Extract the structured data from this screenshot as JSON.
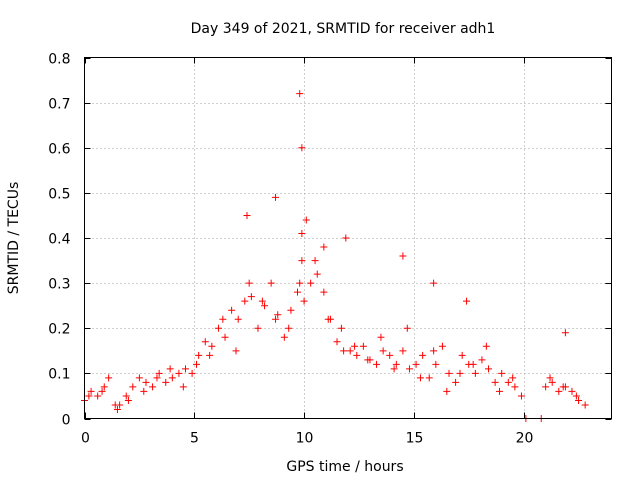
{
  "chart_data": {
    "type": "scatter",
    "title": "Day 349 of 2021, SRMTID for receiver adh1",
    "xlabel": "GPS time / hours",
    "ylabel": "SRMTID / TECUs",
    "xlim": [
      0,
      24
    ],
    "ylim": [
      0,
      0.8
    ],
    "xticks": [
      0,
      5,
      10,
      15,
      20
    ],
    "xtick_labels": [
      "0",
      "5",
      "10",
      "15",
      "20"
    ],
    "yticks": [
      0,
      0.1,
      0.2,
      0.3,
      0.4,
      0.5,
      0.6,
      0.7,
      0.8
    ],
    "ytick_labels": [
      "0",
      "0.1",
      "0.2",
      "0.3",
      "0.4",
      "0.5",
      "0.6",
      "0.7",
      "0.8"
    ],
    "grid": true,
    "marker": "+",
    "marker_color": "#ff0000",
    "series": [
      {
        "name": "SRMTID",
        "x": [
          0.0,
          0.3,
          0.6,
          0.9,
          1.1,
          1.4,
          1.6,
          1.9,
          2.2,
          2.5,
          2.8,
          3.1,
          3.4,
          3.7,
          4.0,
          4.3,
          4.6,
          4.9,
          5.2,
          5.5,
          5.8,
          6.1,
          6.4,
          6.7,
          7.0,
          7.3,
          7.6,
          7.9,
          8.2,
          8.5,
          8.8,
          9.1,
          9.4,
          9.7,
          9.8,
          9.9,
          10.0,
          10.3,
          10.6,
          10.9,
          11.2,
          11.5,
          11.8,
          12.1,
          12.4,
          12.7,
          13.0,
          13.3,
          13.6,
          13.9,
          14.2,
          14.5,
          14.8,
          15.1,
          15.4,
          15.7,
          16.0,
          16.3,
          16.6,
          16.9,
          17.2,
          17.5,
          17.8,
          18.1,
          18.4,
          18.7,
          19.0,
          19.3,
          19.6,
          19.9,
          20.1,
          20.8,
          21.0,
          21.3,
          21.6,
          21.9,
          22.2,
          22.5,
          22.8,
          0.2,
          0.8,
          1.5,
          2.0,
          2.7,
          3.3,
          3.9,
          4.5,
          5.1,
          5.7,
          6.3,
          6.9,
          7.5,
          8.1,
          8.7,
          9.3,
          9.9,
          10.5,
          11.1,
          11.7,
          12.3,
          12.9,
          13.5,
          14.1,
          14.7,
          15.3,
          15.9,
          16.5,
          17.1,
          17.7,
          18.3,
          18.9,
          19.5,
          21.2,
          21.8,
          22.4,
          7.4,
          8.7,
          9.8,
          9.9,
          10.1,
          10.9,
          11.9,
          14.5,
          15.9,
          17.4,
          21.9
        ],
        "y": [
          0.04,
          0.06,
          0.05,
          0.07,
          0.09,
          0.03,
          0.03,
          0.05,
          0.07,
          0.09,
          0.08,
          0.07,
          0.1,
          0.08,
          0.09,
          0.1,
          0.11,
          0.1,
          0.14,
          0.17,
          0.16,
          0.2,
          0.18,
          0.24,
          0.22,
          0.26,
          0.27,
          0.2,
          0.25,
          0.3,
          0.23,
          0.18,
          0.24,
          0.28,
          0.3,
          0.35,
          0.26,
          0.3,
          0.32,
          0.28,
          0.22,
          0.17,
          0.15,
          0.15,
          0.14,
          0.16,
          0.13,
          0.12,
          0.15,
          0.14,
          0.12,
          0.15,
          0.11,
          0.12,
          0.14,
          0.09,
          0.12,
          0.16,
          0.1,
          0.08,
          0.14,
          0.12,
          0.1,
          0.13,
          0.11,
          0.08,
          0.1,
          0.08,
          0.07,
          0.05,
          0.0,
          0.0,
          0.07,
          0.08,
          0.06,
          0.07,
          0.06,
          0.04,
          0.03,
          0.05,
          0.06,
          0.02,
          0.04,
          0.06,
          0.09,
          0.11,
          0.07,
          0.12,
          0.14,
          0.22,
          0.15,
          0.3,
          0.26,
          0.22,
          0.2,
          0.41,
          0.35,
          0.22,
          0.2,
          0.16,
          0.13,
          0.18,
          0.11,
          0.2,
          0.09,
          0.15,
          0.06,
          0.1,
          0.12,
          0.16,
          0.06,
          0.09,
          0.09,
          0.07,
          0.05,
          0.45,
          0.49,
          0.72,
          0.6,
          0.44,
          0.38,
          0.4,
          0.36,
          0.3,
          0.26,
          0.19
        ]
      }
    ]
  }
}
